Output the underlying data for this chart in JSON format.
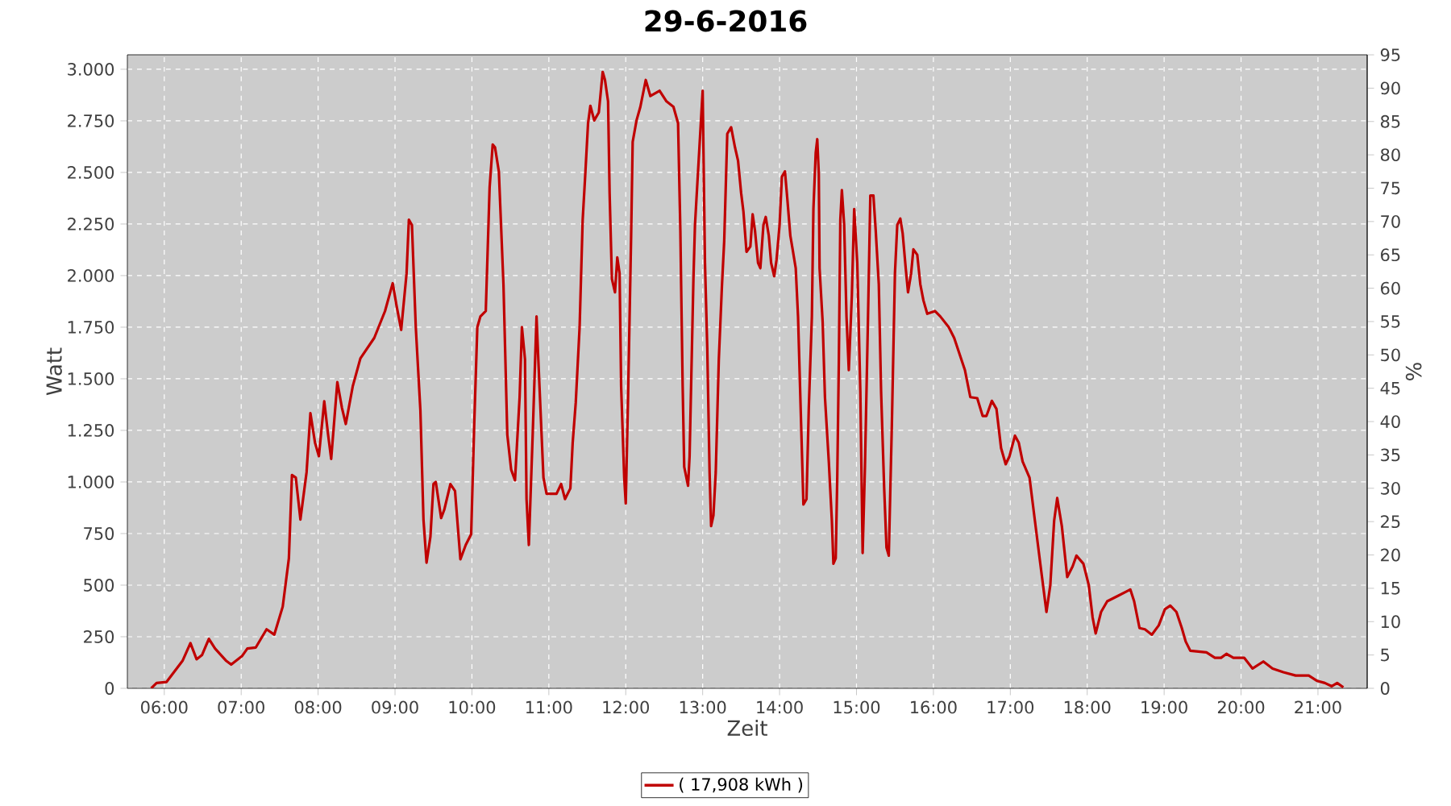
{
  "chart_data": {
    "type": "line",
    "title": "29-6-2016",
    "xlabel": "Zeit",
    "ylabel": "Watt",
    "y2label": "%",
    "x": [
      5.83,
      5.9,
      6.03,
      6.24,
      6.34,
      6.42,
      6.49,
      6.58,
      6.66,
      6.8,
      6.87,
      7.01,
      7.08,
      7.19,
      7.33,
      7.43,
      7.54,
      7.62,
      7.66,
      7.71,
      7.77,
      7.85,
      7.9,
      7.96,
      8.01,
      8.08,
      8.13,
      8.17,
      8.25,
      8.31,
      8.36,
      8.45,
      8.55,
      8.73,
      8.87,
      8.97,
      9.02,
      9.08,
      9.15,
      9.18,
      9.22,
      9.27,
      9.33,
      9.37,
      9.41,
      9.46,
      9.5,
      9.53,
      9.6,
      9.64,
      9.72,
      9.78,
      9.85,
      9.92,
      9.99,
      10.03,
      10.07,
      10.11,
      10.18,
      10.23,
      10.27,
      10.3,
      10.35,
      10.41,
      10.46,
      10.51,
      10.56,
      10.62,
      10.65,
      10.69,
      10.71,
      10.74,
      10.79,
      10.84,
      10.86,
      10.93,
      10.97,
      11.1,
      11.16,
      11.21,
      11.28,
      11.31,
      11.35,
      11.4,
      11.44,
      11.47,
      11.51,
      11.54,
      11.59,
      11.65,
      11.7,
      11.73,
      11.77,
      11.79,
      11.82,
      11.86,
      11.89,
      11.92,
      11.94,
      11.98,
      12.0,
      12.03,
      12.07,
      12.09,
      12.14,
      12.19,
      12.26,
      12.32,
      12.44,
      12.53,
      12.62,
      12.68,
      12.71,
      12.72,
      12.74,
      12.76,
      12.81,
      12.83,
      12.88,
      12.9,
      12.93,
      12.97,
      13.0,
      13.03,
      13.06,
      13.09,
      13.11,
      13.14,
      13.17,
      13.21,
      13.25,
      13.28,
      13.32,
      13.37,
      13.42,
      13.46,
      13.5,
      13.53,
      13.57,
      13.62,
      13.65,
      13.68,
      13.72,
      13.75,
      13.79,
      13.82,
      13.86,
      13.89,
      13.93,
      13.96,
      14.0,
      14.03,
      14.07,
      14.1,
      14.14,
      14.17,
      14.21,
      14.24,
      14.28,
      14.31,
      14.35,
      14.38,
      14.42,
      14.44,
      14.47,
      14.49,
      14.51,
      14.52,
      14.56,
      14.59,
      14.64,
      14.68,
      14.7,
      14.73,
      14.75,
      14.77,
      14.79,
      14.81,
      14.84,
      14.87,
      14.9,
      14.94,
      14.97,
      15.01,
      15.05,
      15.08,
      15.11,
      15.15,
      15.18,
      15.22,
      15.25,
      15.29,
      15.32,
      15.36,
      15.39,
      15.42,
      15.46,
      15.5,
      15.53,
      15.57,
      15.6,
      15.64,
      15.67,
      15.71,
      15.74,
      15.79,
      15.83,
      15.87,
      15.92,
      16.02,
      16.09,
      16.2,
      16.27,
      16.41,
      16.48,
      16.57,
      16.64,
      16.69,
      16.76,
      16.82,
      16.88,
      16.94,
      16.99,
      17.06,
      17.11,
      17.16,
      17.25,
      17.32,
      17.39,
      17.47,
      17.52,
      17.57,
      17.61,
      17.67,
      17.74,
      17.81,
      17.86,
      17.95,
      18.02,
      18.07,
      18.11,
      18.18,
      18.26,
      18.4,
      18.51,
      18.56,
      18.61,
      18.68,
      18.75,
      18.84,
      18.93,
      19.01,
      19.08,
      19.16,
      19.23,
      19.28,
      19.34,
      19.55,
      19.66,
      19.74,
      19.81,
      19.9,
      20.04,
      20.15,
      20.29,
      20.41,
      20.55,
      20.71,
      20.88,
      20.99,
      21.09,
      21.18,
      21.25,
      21.33
    ],
    "series": [
      {
        "name": "( 17,908 kWh )",
        "color": "#c00000",
        "values": [
          0,
          26,
          31,
          135,
          219,
          141,
          161,
          240,
          193,
          135,
          115,
          156,
          193,
          198,
          286,
          260,
          396,
          630,
          1034,
          1021,
          818,
          1047,
          1333,
          1190,
          1125,
          1391,
          1229,
          1112,
          1484,
          1359,
          1281,
          1463,
          1599,
          1698,
          1828,
          1963,
          1854,
          1737,
          2010,
          2271,
          2245,
          1750,
          1346,
          818,
          609,
          734,
          990,
          1000,
          825,
          865,
          990,
          956,
          625,
          695,
          747,
          1281,
          1750,
          1802,
          1828,
          2427,
          2635,
          2622,
          2505,
          1958,
          1229,
          1060,
          1008,
          1411,
          1750,
          1594,
          917,
          695,
          1229,
          1802,
          1620,
          1021,
          943,
          943,
          990,
          917,
          969,
          1190,
          1385,
          1750,
          2271,
          2466,
          2739,
          2823,
          2752,
          2791,
          2987,
          2948,
          2844,
          2401,
          1984,
          1919,
          2088,
          2010,
          1463,
          1021,
          896,
          1411,
          2193,
          2648,
          2752,
          2818,
          2948,
          2870,
          2896,
          2844,
          2818,
          2739,
          2219,
          1958,
          1463,
          1073,
          982,
          1125,
          1984,
          2245,
          null,
          null,
          2896,
          2062,
          1646,
          1047,
          786,
          838,
          1047,
          1594,
          1945,
          2167,
          2687,
          2719,
          2622,
          2557,
          2401,
          2310,
          2115,
          2141,
          2297,
          2219,
          2062,
          2036,
          2245,
          2284,
          2193,
          2062,
          1997,
          2075,
          2245,
          2479,
          2505,
          2375,
          2193,
          2127,
          2036,
          1802,
          1281,
          891,
          917,
          1359,
          1802,
          2323,
          2596,
          2661,
          2492,
          2036,
          1776,
          1411,
          1099,
          812,
          604,
          630,
          1021,
          1568,
          2271,
          2414,
          2245,
          1802,
          1542,
          1906,
          2323,
          2062,
          1437,
          656,
          1073,
          1802,
          2388,
          2388,
          2219,
          1958,
          1437,
          969,
          682,
          643,
          1281,
          2010,
          2245,
          2276,
          2206,
          2036,
          1919,
          2010,
          2127,
          2101,
          1958,
          1880,
          1815,
          1828,
          1802,
          1750,
          1698,
          1542,
          1411,
          1406,
          1320,
          1320,
          1393,
          1354,
          1164,
          1086,
          1125,
          1224,
          1190,
          1099,
          1021,
          812,
          604,
          370,
          500,
          812,
          922,
          786,
          539,
          591,
          643,
          604,
          500,
          344,
          266,
          370,
          422,
          448,
          469,
          479,
          422,
          292,
          286,
          260,
          305,
          383,
          401,
          370,
          292,
          227,
          182,
          174,
          148,
          148,
          167,
          148,
          148,
          96,
          130,
          96,
          78,
          62,
          62,
          36,
          26,
          10,
          26,
          5
        ]
      }
    ],
    "xlim": [
      5.52,
      21.64
    ],
    "ylim": [
      0,
      3070
    ],
    "y2lim": [
      0,
      95
    ],
    "xticks": [
      {
        "value": 6,
        "label": "06:00"
      },
      {
        "value": 7,
        "label": "07:00"
      },
      {
        "value": 8,
        "label": "08:00"
      },
      {
        "value": 9,
        "label": "09:00"
      },
      {
        "value": 10,
        "label": "10:00"
      },
      {
        "value": 11,
        "label": "11:00"
      },
      {
        "value": 12,
        "label": "12:00"
      },
      {
        "value": 13,
        "label": "13:00"
      },
      {
        "value": 14,
        "label": "14:00"
      },
      {
        "value": 15,
        "label": "15:00"
      },
      {
        "value": 16,
        "label": "16:00"
      },
      {
        "value": 17,
        "label": "17:00"
      },
      {
        "value": 18,
        "label": "18:00"
      },
      {
        "value": 19,
        "label": "19:00"
      },
      {
        "value": 20,
        "label": "20:00"
      },
      {
        "value": 21,
        "label": "21:00"
      }
    ],
    "yticks": [
      0,
      250,
      500,
      750,
      {
        "value": 1000,
        "label": "1.000"
      },
      {
        "value": 1250,
        "label": "1.250"
      },
      {
        "value": 1500,
        "label": "1.500"
      },
      {
        "value": 1750,
        "label": "1.750"
      },
      {
        "value": 2000,
        "label": "2.000"
      },
      {
        "value": 2250,
        "label": "2.250"
      },
      {
        "value": 2500,
        "label": "2.500"
      },
      {
        "value": 2750,
        "label": "2.750"
      },
      {
        "value": 3000,
        "label": "3.000"
      }
    ],
    "y2ticks": [
      0,
      5,
      10,
      15,
      20,
      25,
      30,
      35,
      40,
      45,
      50,
      55,
      60,
      65,
      70,
      75,
      80,
      85,
      90,
      95
    ],
    "grid": true,
    "legend": "bottom"
  }
}
